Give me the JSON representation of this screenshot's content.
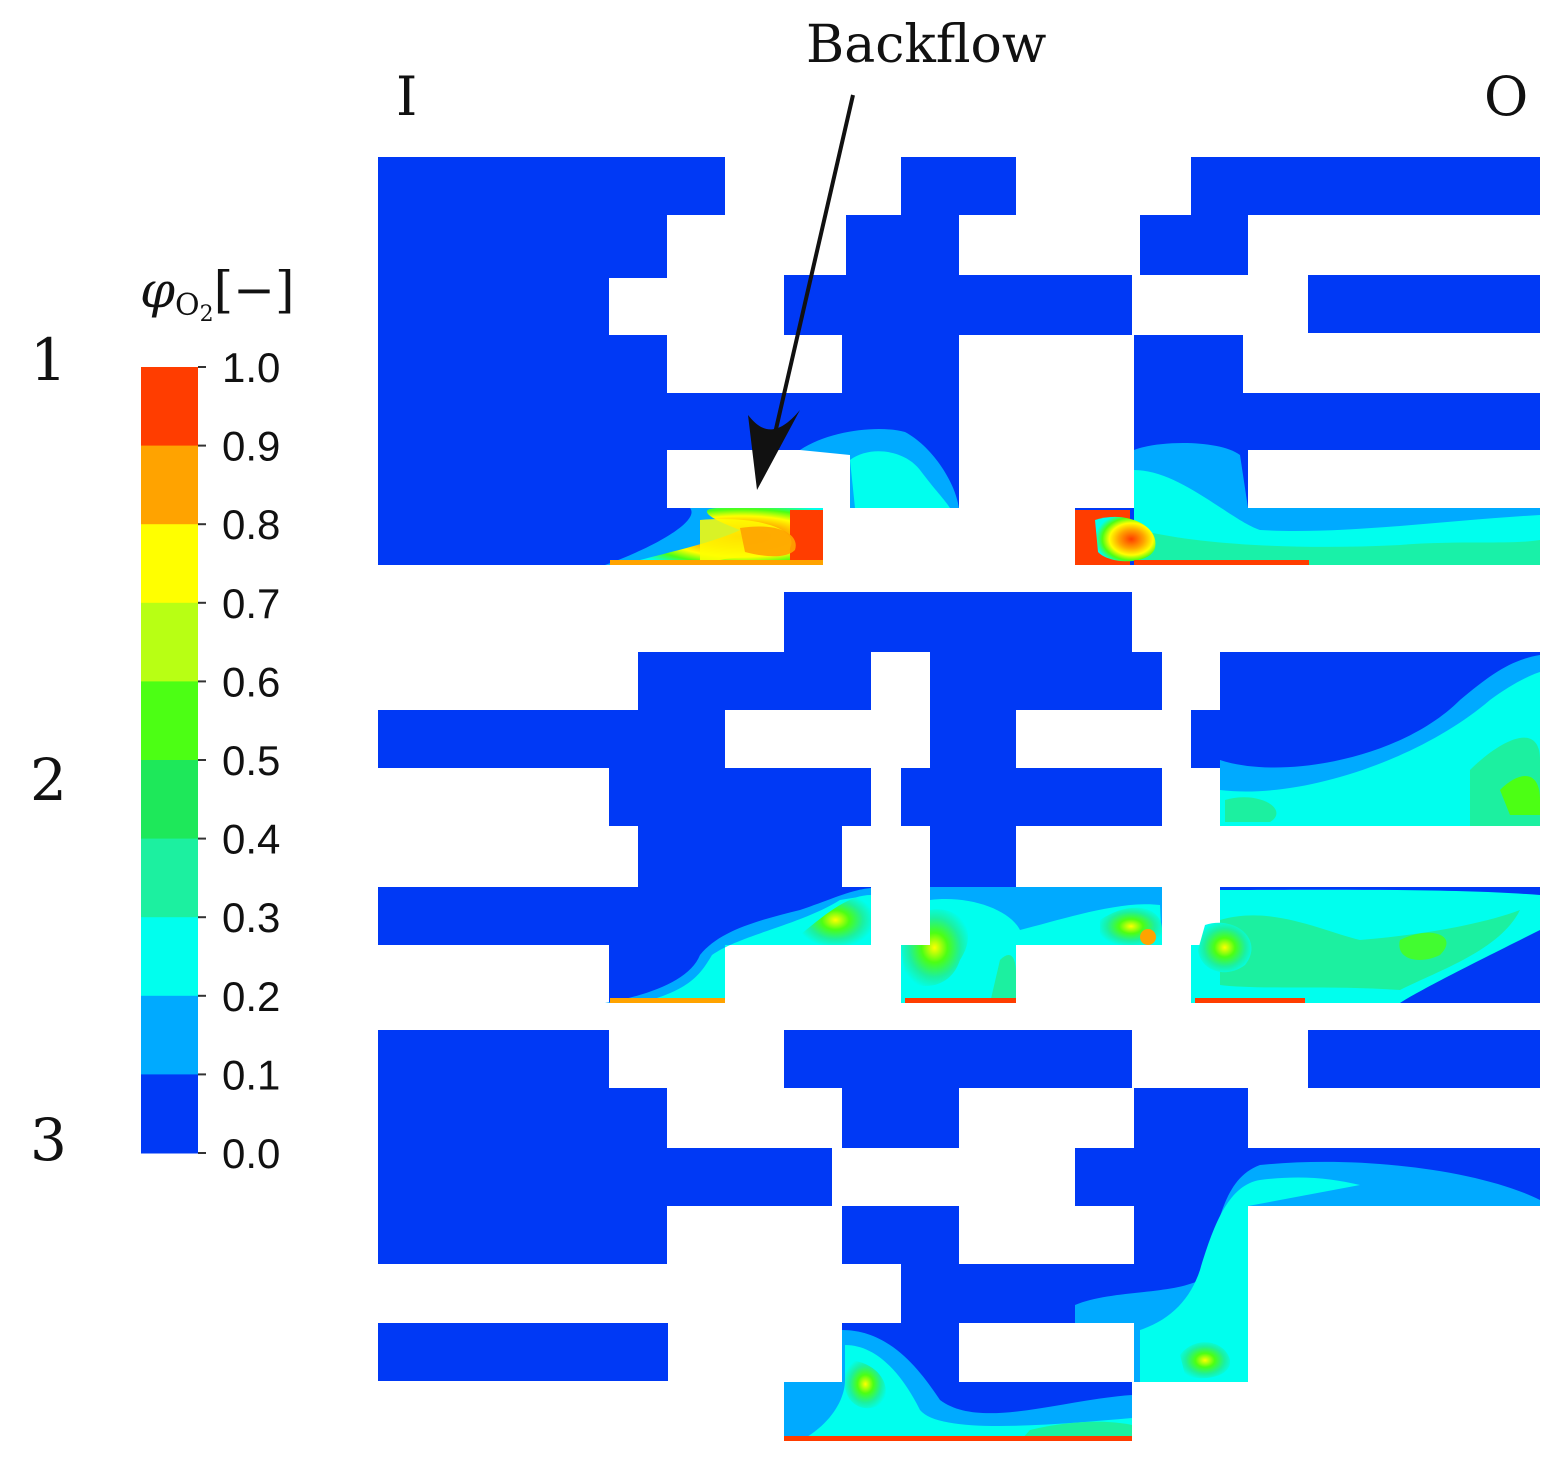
{
  "annotation": {
    "text": "Backflow"
  },
  "markers": {
    "inlet": "I",
    "outlet": "O"
  },
  "rows": [
    "1",
    "2",
    "3"
  ],
  "colorbar": {
    "title_symbol": "φ",
    "title_subscript": "O",
    "title_sub_index": "2",
    "title_unit": "[−]",
    "ticks": [
      "1.0",
      "0.9",
      "0.8",
      "0.7",
      "0.6",
      "0.5",
      "0.4",
      "0.3",
      "0.2",
      "0.1",
      "0.0"
    ],
    "colors": [
      "#ff3d00",
      "#ffa300",
      "#ffff00",
      "#b8ff14",
      "#4cff14",
      "#1ee85a",
      "#1cf0a0",
      "#00ffee",
      "#00aaff",
      "#0039f5"
    ]
  },
  "colors": {
    "low": "#0039f5",
    "mid": "#00ffee",
    "high": "#ff3d00"
  }
}
